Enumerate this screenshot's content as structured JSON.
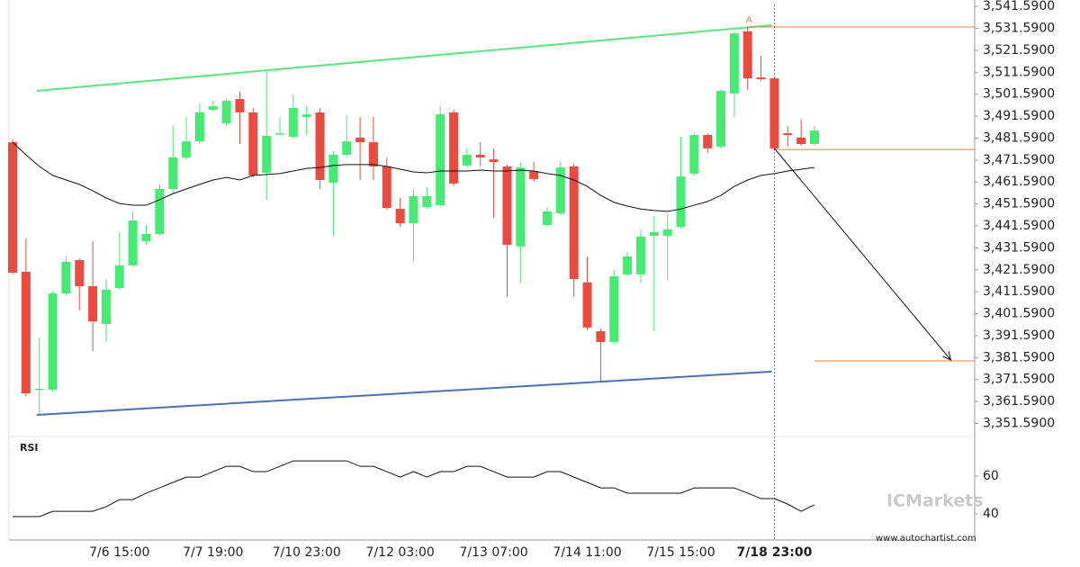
{
  "chart_data": {
    "type": "candlestick",
    "categories": [
      null,
      null,
      null,
      null,
      null,
      null,
      null,
      null,
      "7/6 15:00",
      null,
      null,
      null,
      null,
      null,
      null,
      "7/7 19:00",
      null,
      null,
      null,
      null,
      null,
      null,
      "7/10 23:00",
      null,
      null,
      null,
      null,
      null,
      null,
      "7/12 03:00",
      null,
      null,
      null,
      null,
      null,
      null,
      "7/13 07:00",
      null,
      null,
      null,
      null,
      null,
      null,
      "7/14 11:00",
      null,
      null,
      null,
      null,
      null,
      null,
      "7/15 15:00",
      null,
      null,
      null,
      null,
      null,
      null,
      "7/18 23:00",
      null,
      null,
      null
    ],
    "open": [
      3479.7,
      3420.7,
      3367,
      3367,
      3410.8,
      3426,
      3414.1,
      3396.9,
      3413.3,
      3423.6,
      3434.6,
      3437.9,
      3458.4,
      3472.8,
      3480.1,
      3494.5,
      3488.3,
      3499.4,
      3493.3,
      3465.8,
      3483.4,
      3482.2,
      3491.2,
      3493.3,
      3461.3,
      3474,
      3481.8,
      3479.7,
      3468.7,
      3449.4,
      3442.8,
      3450.2,
      3451,
      3493.3,
      3469.1,
      3474,
      3471.9,
      3468.7,
      3432.2,
      3466.6,
      3442,
      3447.3,
      3468.7,
      3415.8,
      3393.6,
      3388.7,
      3419.5,
      3419.5,
      3437.1,
      3437.1,
      3441.2,
      3465.4,
      3483,
      3477.7,
      3501.9,
      3530.2,
      3509.2,
      3508.8,
      3483.8,
      3481.8,
      3478.9
    ],
    "high": [
      3481,
      3435.9,
      3390.8,
      3411.7,
      3427.7,
      3426.8,
      3434.6,
      3417.4,
      3438.7,
      3448.2,
      3442,
      3460.5,
      3487.1,
      3491.2,
      3497.4,
      3498.6,
      3499.4,
      3502.7,
      3495.3,
      3512.5,
      3491.2,
      3501.5,
      3496.1,
      3495.3,
      3475.6,
      3492,
      3491.2,
      3491.2,
      3472.8,
      3454.3,
      3458.4,
      3459.2,
      3496.1,
      3494.5,
      3476.9,
      3479.7,
      3476.9,
      3469.5,
      3470.7,
      3470.7,
      3450.2,
      3470.7,
      3469.9,
      3427.7,
      3394.9,
      3421.5,
      3429.7,
      3440,
      3446.1,
      3446.9,
      3482.2,
      3483.8,
      3483.8,
      3503.9,
      3530.2,
      3532.2,
      3519.1,
      3509.6,
      3487.1,
      3490,
      3487.1
    ],
    "low": [
      3419.5,
      3364.1,
      3355.9,
      3366.2,
      3410,
      3403.1,
      3384.6,
      3388.7,
      3412.5,
      3422.7,
      3433,
      3437.1,
      3456.3,
      3471.5,
      3478.9,
      3493.7,
      3487.1,
      3478.9,
      3463.7,
      3453.5,
      3483,
      3481,
      3483,
      3458.4,
      3437.1,
      3472.8,
      3462.5,
      3462.5,
      3449,
      3441.2,
      3425.6,
      3449.4,
      3450.2,
      3460,
      3468.2,
      3468.7,
      3445.3,
      3409.2,
      3415.4,
      3461.7,
      3441.2,
      3446.5,
      3409.2,
      3394.1,
      3370.7,
      3387.9,
      3418.6,
      3415.4,
      3393.6,
      3416.6,
      3440.4,
      3464.6,
      3474.8,
      3476.9,
      3491.2,
      3503.5,
      3507.6,
      3476,
      3477.7,
      3478.1,
      3478.1
    ],
    "close": [
      3420.3,
      3365.3,
      3367.4,
      3410.8,
      3425.2,
      3414.1,
      3398.1,
      3412.5,
      3423.6,
      3444,
      3437.9,
      3458.4,
      3472.8,
      3480.1,
      3493.3,
      3496.1,
      3498.6,
      3493.3,
      3464.6,
      3482.6,
      3483.8,
      3495.3,
      3492.4,
      3462.5,
      3474,
      3480.1,
      3479.7,
      3468.7,
      3449.8,
      3442.8,
      3455.1,
      3455.1,
      3492.4,
      3460.9,
      3474,
      3472.8,
      3470.7,
      3433,
      3468.2,
      3462.9,
      3448.2,
      3468.2,
      3417.4,
      3395.3,
      3388.7,
      3418.6,
      3427.7,
      3436.7,
      3438.7,
      3440,
      3464.1,
      3483,
      3476.9,
      3503.1,
      3529.3,
      3508.8,
      3508.4,
      3476.9,
      3483,
      3478.9,
      3485
    ],
    "up_color": "#46ea74",
    "down_color": "#e84b40",
    "ylim": [
      3345.65,
      3544.5
    ],
    "yticks": [
      {
        "value": 3351.59,
        "label": "3,351.5900"
      },
      {
        "value": 3361.59,
        "label": "3,361.5900"
      },
      {
        "value": 3371.59,
        "label": "3,371.5900"
      },
      {
        "value": 3381.59,
        "label": "3,381.5900"
      },
      {
        "value": 3391.59,
        "label": "3,391.5900"
      },
      {
        "value": 3401.59,
        "label": "3,401.5900"
      },
      {
        "value": 3411.59,
        "label": "3,411.5900"
      },
      {
        "value": 3421.59,
        "label": "3,421.5900"
      },
      {
        "value": 3431.59,
        "label": "3,431.5900"
      },
      {
        "value": 3441.59,
        "label": "3,441.5900"
      },
      {
        "value": 3451.59,
        "label": "3,451.5900"
      },
      {
        "value": 3461.59,
        "label": "3,461.5900"
      },
      {
        "value": 3471.59,
        "label": "3,471.5900"
      },
      {
        "value": 3481.59,
        "label": "3,481.5900"
      },
      {
        "value": 3491.59,
        "label": "3,491.5900"
      },
      {
        "value": 3501.59,
        "label": "3,501.5900"
      },
      {
        "value": 3511.59,
        "label": "3,511.5900"
      },
      {
        "value": 3521.59,
        "label": "3,521.5900"
      },
      {
        "value": 3531.59,
        "label": "3,531.5900"
      },
      {
        "value": 3541.59,
        "label": "3,541.5900"
      }
    ],
    "moving_average": {
      "color": "#111111",
      "values": [
        3479.7,
        3474,
        3468.7,
        3464.6,
        3462.5,
        3460.5,
        3457.6,
        3454.3,
        3451.8,
        3451,
        3451,
        3453.5,
        3456.3,
        3458.4,
        3460.5,
        3462.5,
        3463.7,
        3462.5,
        3464.6,
        3465,
        3465.4,
        3466.6,
        3467.8,
        3468.2,
        3469.1,
        3469.5,
        3469.5,
        3469.5,
        3468.7,
        3467.4,
        3466.2,
        3465.8,
        3466.6,
        3466.6,
        3466.6,
        3467,
        3466.6,
        3466.6,
        3467,
        3466.6,
        3465.4,
        3464.6,
        3462.5,
        3459.6,
        3455.5,
        3452.3,
        3450.6,
        3449.3,
        3448.6,
        3448.2,
        3449.3,
        3451,
        3452.7,
        3455.5,
        3459.6,
        3462.5,
        3464.6,
        3465.4,
        3466.6,
        3467.4,
        3468.2
      ]
    },
    "resistance": {
      "color": "#5be57c",
      "from": [
        1.8,
        3503.1
      ],
      "to": [
        56.8,
        3533
      ]
    },
    "support": {
      "color": "#4a72b0",
      "from": [
        1.8,
        3355.5
      ],
      "to": [
        56.8,
        3375.2
      ]
    },
    "levels": {
      "color": "#e0864e",
      "lines": [
        {
          "price": 3532.2,
          "from": 55
        },
        {
          "price": 3476.4,
          "from": 57
        },
        {
          "price": 3380.1,
          "from": 60
        }
      ]
    },
    "arrow": {
      "color": "#111111",
      "from": [
        57,
        3476.9
      ],
      "to": [
        70.2,
        3380.5
      ]
    },
    "annotation": {
      "text": "A",
      "x": 55.1,
      "y": 3535.5,
      "color": "#e0864e"
    },
    "highlight_x": 57,
    "rsi": {
      "title": "RSI",
      "color": "#111111",
      "ylim": [
        26.2,
        81
      ],
      "yticks": [
        40,
        60
      ],
      "values": [
        38.6,
        38.6,
        38.6,
        41.4,
        41.4,
        41.4,
        41.4,
        43.8,
        47.6,
        47.6,
        51,
        53.8,
        56.7,
        59.5,
        59.5,
        62.4,
        65.2,
        65.2,
        62.4,
        62.4,
        65.2,
        68.1,
        68.1,
        68.1,
        68.1,
        68.1,
        65.2,
        65.2,
        62.4,
        59.5,
        62.4,
        59.5,
        62.4,
        62.4,
        65.2,
        65.2,
        62.4,
        59.5,
        59.5,
        59.5,
        62.4,
        62.4,
        59.5,
        56.7,
        53.8,
        53.8,
        51,
        51,
        51,
        51,
        51,
        53.8,
        53.8,
        53.8,
        53.8,
        51,
        48.1,
        48.1,
        45.2,
        41.4,
        44.8
      ]
    },
    "watermark": "ICMarkets",
    "source": "www.autochartist.com"
  }
}
